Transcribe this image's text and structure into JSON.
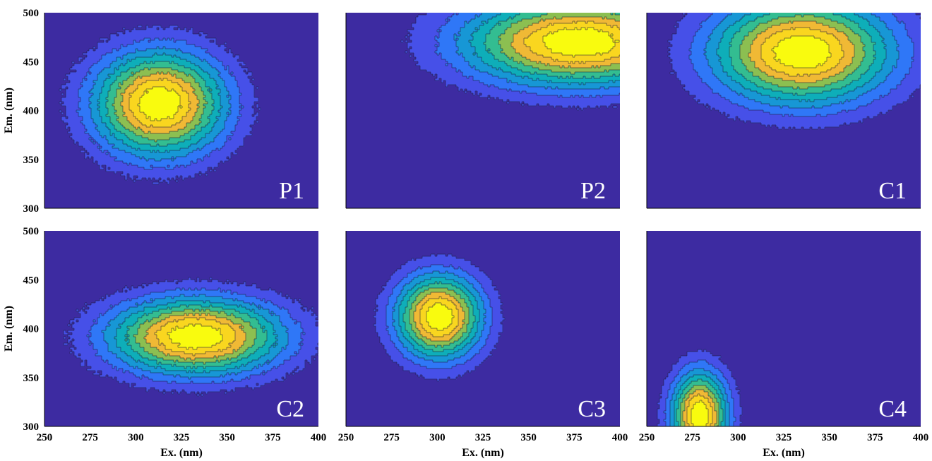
{
  "chart_data": {
    "type": "heatmap",
    "rendering": "filled contour plots",
    "colormap": "parula",
    "level_colors": [
      "#3d2ba1",
      "#4650e8",
      "#2f77f7",
      "#1797d5",
      "#0eaeb9",
      "#33bd91",
      "#8cbf51",
      "#f0b935",
      "#f9d61f",
      "#f9fb0e"
    ],
    "x_label": "Ex. (nm)",
    "y_label": "Em. (nm)",
    "xlim": [
      250,
      400
    ],
    "ylim": [
      300,
      500
    ],
    "x_ticks": [
      "250",
      "275",
      "300",
      "325",
      "350",
      "375",
      "400"
    ],
    "y_ticks": [
      "300",
      "350",
      "400",
      "450",
      "500"
    ],
    "panels": [
      {
        "label": "P1",
        "peaks": [
          {
            "ex": 313,
            "em": 407,
            "sx": 35,
            "sy": 52,
            "noise": 0.04
          }
        ]
      },
      {
        "label": "P2",
        "peaks": [
          {
            "ex": 378,
            "em": 470,
            "sx": 62,
            "sy": 44,
            "noise": 0.03
          }
        ]
      },
      {
        "label": "C1",
        "peaks": [
          {
            "ex": 335,
            "em": 460,
            "sx": 48,
            "sy": 52,
            "noise": 0.02
          }
        ]
      },
      {
        "label": "C2",
        "peaks": [
          {
            "ex": 333,
            "em": 392,
            "sx": 46,
            "sy": 38,
            "noise": 0.04
          }
        ]
      },
      {
        "label": "C3",
        "peaks": [
          {
            "ex": 301,
            "em": 412,
            "sx": 23,
            "sy": 42,
            "noise": 0.02
          }
        ]
      },
      {
        "label": "C4",
        "peaks": [
          {
            "ex": 279,
            "em": 311,
            "sx": 15,
            "sy": 44,
            "noise": 0.02
          }
        ]
      }
    ]
  }
}
